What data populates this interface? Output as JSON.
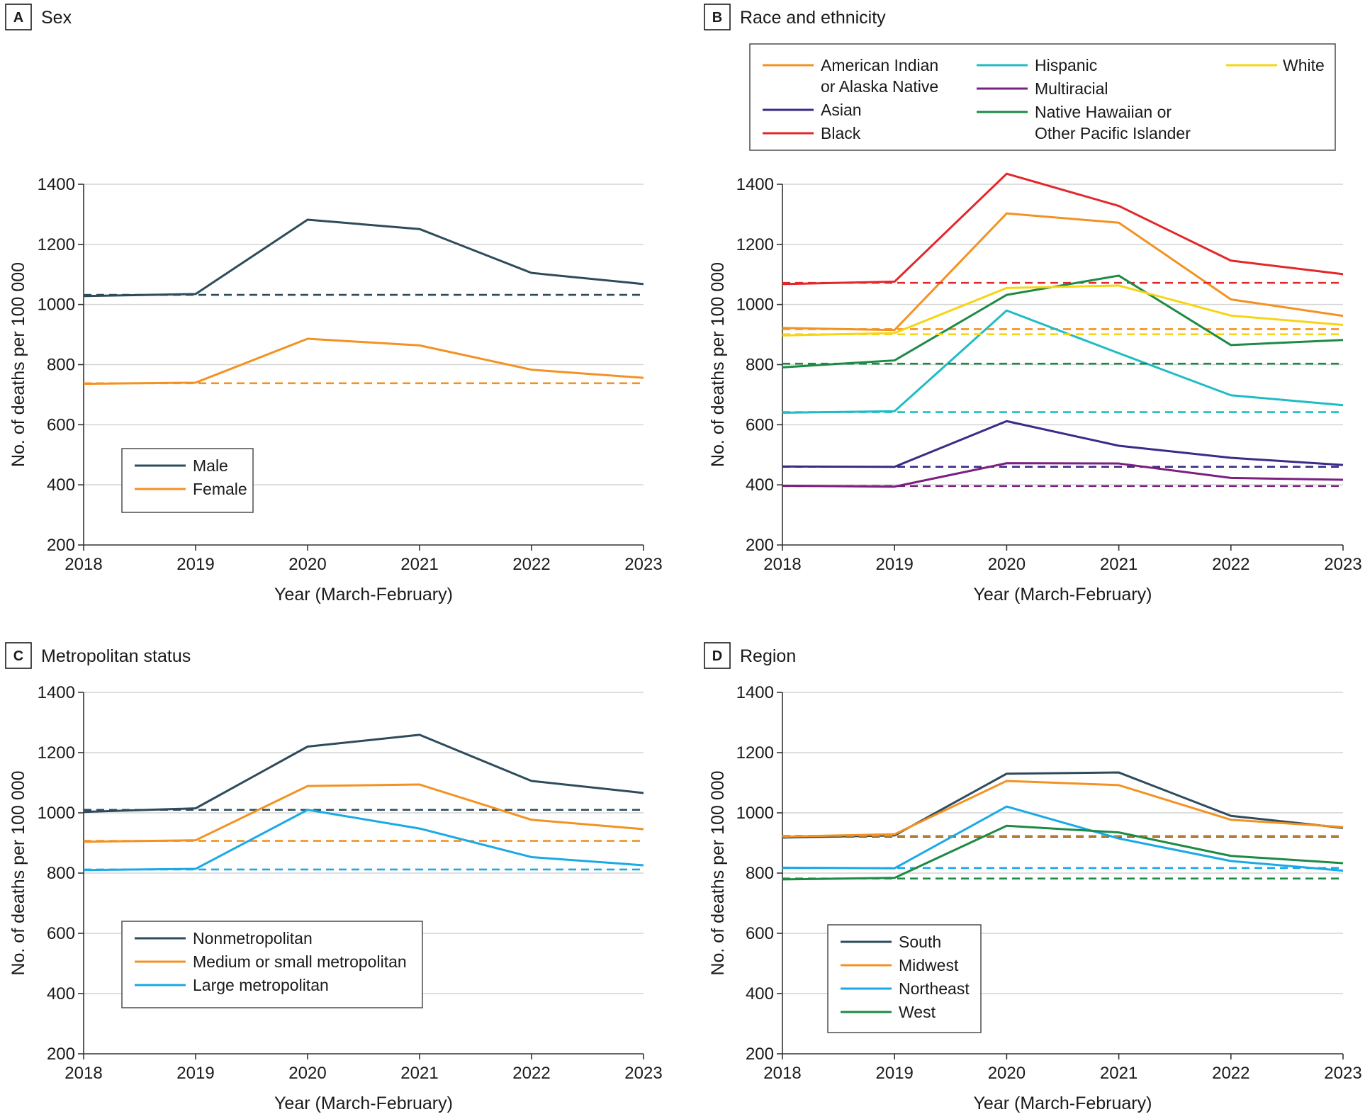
{
  "colors": {
    "dark_teal": "#2e4b5c",
    "orange": "#f39222",
    "red": "#e2272b",
    "indigo": "#3a2b86",
    "cyan": "#1fbcc4",
    "purple": "#7b1f80",
    "green": "#1d8a45",
    "yellow": "#f5d515",
    "sky": "#1aa9e6"
  },
  "chart_data": [
    {
      "panel": "A",
      "title": "Sex",
      "type": "line",
      "xlabel": "Year (March-February)",
      "ylabel": "No. of deaths per 100 000",
      "x": [
        "2018",
        "2019",
        "2020",
        "2021",
        "2022",
        "2023"
      ],
      "ylim": [
        200,
        1400
      ],
      "yticks": [
        "200",
        "400",
        "600",
        "800",
        "1000",
        "1200",
        "1400"
      ],
      "grid": true,
      "legend_position": "lower-left",
      "legend": [
        {
          "name": "Male",
          "color": "#2e4b5c"
        },
        {
          "name": "Female",
          "color": "#f39222"
        }
      ],
      "series": [
        {
          "name": "Male",
          "color": "#2e4b5c",
          "values": [
            1028,
            1035,
            1282,
            1251,
            1105,
            1068
          ],
          "baseline": 1032
        },
        {
          "name": "Female",
          "color": "#f39222",
          "values": [
            736,
            740,
            886,
            864,
            783,
            756
          ],
          "baseline": 738
        }
      ]
    },
    {
      "panel": "B",
      "title": "Race and ethnicity",
      "type": "line",
      "xlabel": "Year (March-February)",
      "ylabel": "No. of deaths per 100 000",
      "x": [
        "2018",
        "2019",
        "2020",
        "2021",
        "2022",
        "2023"
      ],
      "ylim": [
        200,
        1400
      ],
      "yticks": [
        "200",
        "400",
        "600",
        "800",
        "1000",
        "1200",
        "1400"
      ],
      "grid": true,
      "legend_position": "top",
      "legend": [
        {
          "name": "American Indian",
          "name2": "or Alaska Native",
          "color": "#f39222"
        },
        {
          "name": "Asian",
          "color": "#3a2b86"
        },
        {
          "name": "Black",
          "color": "#e2272b"
        },
        {
          "name": "Hispanic",
          "color": "#1fbcc4"
        },
        {
          "name": "Multiracial",
          "color": "#7b1f80"
        },
        {
          "name": "Native Hawaiian or",
          "name2": "Other Pacific Islander",
          "color": "#1d8a45"
        },
        {
          "name": "White",
          "color": "#f5d515"
        }
      ],
      "series": [
        {
          "name": "American Indian or Alaska Native",
          "color": "#f39222",
          "values": [
            922,
            915,
            1303,
            1272,
            1017,
            962
          ],
          "baseline": 918
        },
        {
          "name": "Asian",
          "color": "#3a2b86",
          "values": [
            461,
            460,
            612,
            530,
            490,
            466
          ],
          "baseline": 460
        },
        {
          "name": "Black",
          "color": "#e2272b",
          "values": [
            1068,
            1076,
            1435,
            1328,
            1146,
            1101
          ],
          "baseline": 1072
        },
        {
          "name": "Hispanic",
          "color": "#1fbcc4",
          "values": [
            640,
            645,
            980,
            838,
            698,
            665
          ],
          "baseline": 642
        },
        {
          "name": "Multiracial",
          "color": "#7b1f80",
          "values": [
            397,
            394,
            472,
            471,
            423,
            417
          ],
          "baseline": 396
        },
        {
          "name": "Native Hawaiian or Other Pacific Islander",
          "color": "#1d8a45",
          "values": [
            791,
            814,
            1032,
            1096,
            865,
            882
          ],
          "baseline": 803
        },
        {
          "name": "White",
          "color": "#f5d515",
          "values": [
            897,
            905,
            1055,
            1063,
            963,
            932
          ],
          "baseline": 901
        }
      ]
    },
    {
      "panel": "C",
      "title": "Metropolitan status",
      "type": "line",
      "xlabel": "Year (March-February)",
      "ylabel": "No. of deaths per 100 000",
      "x": [
        "2018",
        "2019",
        "2020",
        "2021",
        "2022",
        "2023"
      ],
      "ylim": [
        200,
        1400
      ],
      "yticks": [
        "200",
        "400",
        "600",
        "800",
        "1000",
        "1200",
        "1400"
      ],
      "grid": true,
      "legend_position": "lower-left",
      "legend": [
        {
          "name": "Nonmetropolitan",
          "color": "#2e4b5c"
        },
        {
          "name": "Medium or small metropolitan",
          "color": "#f39222"
        },
        {
          "name": "Large metropolitan",
          "color": "#1aa9e6"
        }
      ],
      "series": [
        {
          "name": "Nonmetropolitan",
          "color": "#2e4b5c",
          "values": [
            1003,
            1015,
            1220,
            1259,
            1106,
            1066
          ],
          "baseline": 1010
        },
        {
          "name": "Medium or small metropolitan",
          "color": "#f39222",
          "values": [
            904,
            909,
            1089,
            1094,
            977,
            946
          ],
          "baseline": 907
        },
        {
          "name": "Large metropolitan",
          "color": "#1aa9e6",
          "values": [
            810,
            814,
            1010,
            948,
            853,
            826
          ],
          "baseline": 812
        }
      ]
    },
    {
      "panel": "D",
      "title": "Region",
      "type": "line",
      "xlabel": "Year (March-February)",
      "ylabel": "No. of deaths per 100 000",
      "x": [
        "2018",
        "2019",
        "2020",
        "2021",
        "2022",
        "2023"
      ],
      "ylim": [
        200,
        1400
      ],
      "yticks": [
        "200",
        "400",
        "600",
        "800",
        "1000",
        "1200",
        "1400"
      ],
      "grid": true,
      "legend_position": "lower-left",
      "legend": [
        {
          "name": "South",
          "color": "#2e4b5c"
        },
        {
          "name": "Midwest",
          "color": "#f39222"
        },
        {
          "name": "Northeast",
          "color": "#1aa9e6"
        },
        {
          "name": "West",
          "color": "#1d8a45"
        }
      ],
      "series": [
        {
          "name": "South",
          "color": "#2e4b5c",
          "values": [
            918,
            925,
            1130,
            1134,
            990,
            950
          ],
          "baseline": 921
        },
        {
          "name": "Midwest",
          "color": "#f39222",
          "values": [
            921,
            929,
            1106,
            1092,
            977,
            953
          ],
          "baseline": 924
        },
        {
          "name": "Northeast",
          "color": "#1aa9e6",
          "values": [
            818,
            816,
            1021,
            915,
            840,
            808
          ],
          "baseline": 817
        },
        {
          "name": "West",
          "color": "#1d8a45",
          "values": [
            779,
            784,
            957,
            935,
            857,
            833
          ],
          "baseline": 782
        }
      ]
    }
  ]
}
